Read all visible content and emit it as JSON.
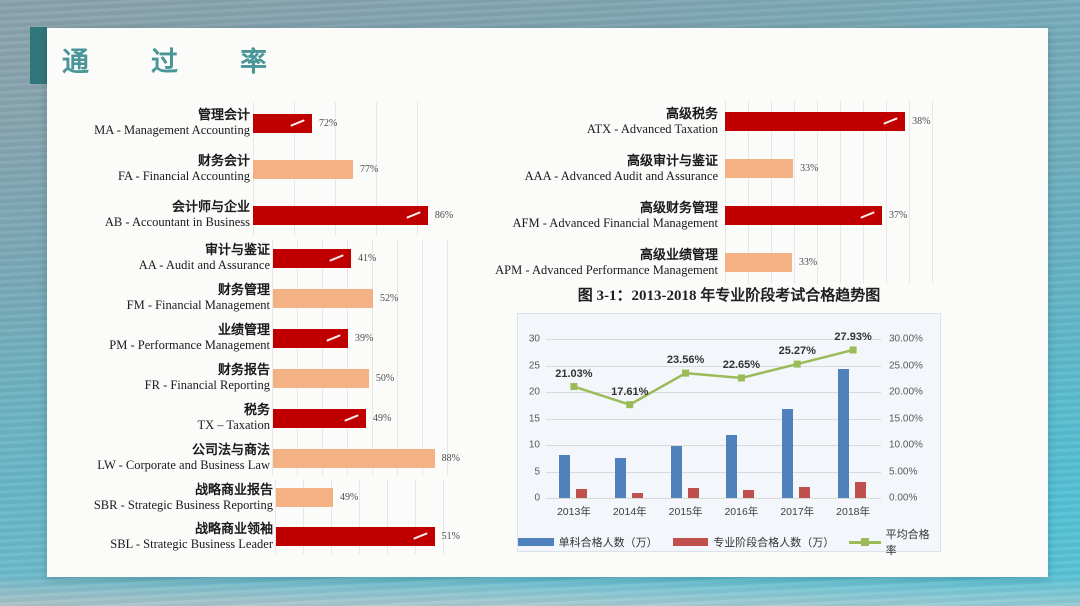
{
  "slide_title": "通过率",
  "figure_title": "图 3-1：2013-2018 年专业阶段考试合格趋势图",
  "colors": {
    "accent_teal": "#31767A",
    "title_teal": "#4A9598",
    "dark_red": "#C00000",
    "light_orange": "#F4B183",
    "bar_blue": "#4F81BD",
    "bar_brick": "#C0504D",
    "line_green": "#9BBB59"
  },
  "chart_data": [
    {
      "id": "applied_knowledge_and_skills_pass_rates",
      "type": "bar",
      "orientation": "horizontal",
      "unit": "%",
      "grid": true,
      "items": [
        {
          "block": 1,
          "cn": "管理会计",
          "en": "MA - Management Accounting",
          "value": 72,
          "label": "72%",
          "color": "dark_red",
          "bar_frac": 0.285
        },
        {
          "block": 1,
          "cn": "财务会计",
          "en": "FA - Financial Accounting",
          "value": 77,
          "label": "77%",
          "color": "light_orange",
          "bar_frac": 0.483
        },
        {
          "block": 1,
          "cn": "会计师与企业",
          "en": "AB - Accountant in Business",
          "value": 86,
          "label": "86%",
          "color": "dark_red",
          "bar_frac": 0.845
        },
        {
          "block": 2,
          "cn": "审计与鉴证",
          "en": "AA - Audit and Assurance",
          "value": 41,
          "label": "41%",
          "color": "dark_red",
          "bar_frac": 0.417
        },
        {
          "block": 2,
          "cn": "财务管理",
          "en": "FM - Financial Management",
          "value": 52,
          "label": "52%",
          "color": "light_orange",
          "bar_frac": 0.535
        },
        {
          "block": 2,
          "cn": "业绩管理",
          "en": "PM - Performance Management",
          "value": 39,
          "label": "39%",
          "color": "dark_red",
          "bar_frac": 0.401
        },
        {
          "block": 2,
          "cn": "财务报告",
          "en": "FR - Financial Reporting",
          "value": 50,
          "label": "50%",
          "color": "light_orange",
          "bar_frac": 0.513
        },
        {
          "block": 2,
          "cn": "税务",
          "en": "TX – Taxation",
          "value": 49,
          "label": "49%",
          "color": "dark_red",
          "bar_frac": 0.497
        },
        {
          "block": 2,
          "cn": "公司法与商法",
          "en": "LW - Corporate and Business Law",
          "value": 88,
          "label": "88%",
          "color": "light_orange",
          "bar_frac": 0.914
        },
        {
          "block": 3,
          "cn": "战略商业报告",
          "en": "SBR - Strategic Business Reporting",
          "value": 49,
          "label": "49%",
          "color": "light_orange",
          "bar_frac": 0.31
        },
        {
          "block": 3,
          "cn": "战略商业领袖",
          "en": "SBL - Strategic Business Leader",
          "value": 51,
          "label": "51%",
          "color": "dark_red",
          "bar_frac": 0.951
        }
      ]
    },
    {
      "id": "strategic_professional_pass_rates",
      "type": "bar",
      "orientation": "horizontal",
      "unit": "%",
      "grid": true,
      "items": [
        {
          "block": 0,
          "cn": "高级税务",
          "en": "ATX - Advanced Taxation",
          "value": 38,
          "label": "38%",
          "color": "dark_red",
          "bar_frac": 0.735
        },
        {
          "block": 0,
          "cn": "高级审计与鉴证",
          "en": "AAA - Advanced Audit and Assurance",
          "value": 33,
          "label": "33%",
          "color": "light_orange",
          "bar_frac": 0.278
        },
        {
          "block": 0,
          "cn": "高级财务管理",
          "en": "AFM - Advanced Financial Management",
          "value": 37,
          "label": "37%",
          "color": "dark_red",
          "bar_frac": 0.641
        },
        {
          "block": 0,
          "cn": "高级业绩管理",
          "en": "APM - Advanced Performance Management",
          "value": 33,
          "label": "33%",
          "color": "light_orange",
          "bar_frac": 0.273
        }
      ]
    },
    {
      "id": "trend_2013_2018",
      "type": "combo",
      "title": "图 3-1：2013-2018 年专业阶段考试合格趋势图",
      "categories": [
        "2013年",
        "2014年",
        "2015年",
        "2016年",
        "2017年",
        "2018年"
      ],
      "series": [
        {
          "name": "单科合格人数（万）",
          "type": "bar",
          "color_key": "bar_blue",
          "values": [
            8.2,
            7.6,
            9.9,
            11.8,
            16.8,
            24.3
          ]
        },
        {
          "name": "专业阶段合格人数（万）",
          "type": "bar",
          "color_key": "bar_brick",
          "values": [
            1.7,
            1.0,
            1.8,
            1.5,
            2.1,
            3.0
          ]
        },
        {
          "name": "平均合格率",
          "type": "line",
          "color_key": "line_green",
          "values": [
            21.03,
            17.61,
            23.56,
            22.65,
            25.27,
            27.93
          ],
          "labels": [
            "21.03%",
            "17.61%",
            "23.56%",
            "22.65%",
            "25.27%",
            "27.93%"
          ]
        }
      ],
      "left_axis": {
        "min": 0,
        "max": 30,
        "step": 5,
        "ticks": [
          "0",
          "5",
          "10",
          "15",
          "20",
          "25",
          "30"
        ]
      },
      "right_axis": {
        "min": 0,
        "max": 30,
        "ticks": [
          "0.00%",
          "5.00%",
          "10.00%",
          "15.00%",
          "20.00%",
          "25.00%",
          "30.00%"
        ]
      },
      "legend_position": "bottom",
      "grid": "horizontal"
    }
  ]
}
